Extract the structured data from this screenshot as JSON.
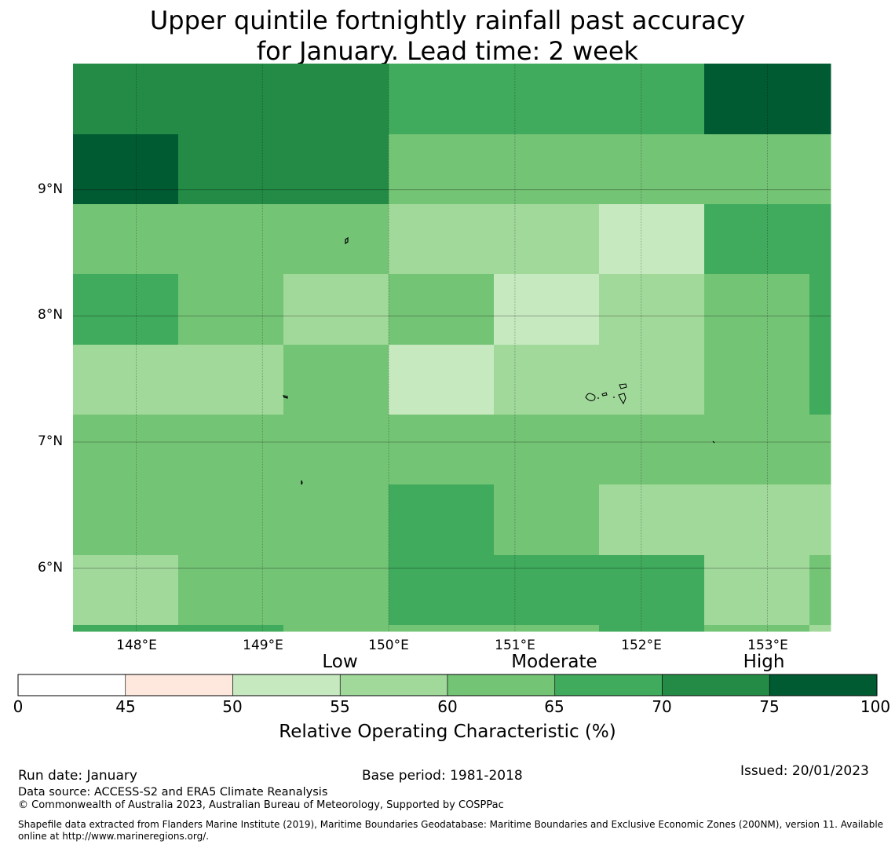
{
  "title_line1": "Upper quintile fortnightly rainfall past accuracy",
  "title_line2": "for January. Lead time: 2 week",
  "map": {
    "lat_range": [
      5.5,
      10.0
    ],
    "lon_range": [
      147.5,
      153.5
    ],
    "cell_size_deg": 0.833,
    "lat_ticks": [
      {
        "value": 9,
        "label": "9°N"
      },
      {
        "value": 8,
        "label": "8°N"
      },
      {
        "value": 7,
        "label": "7°N"
      },
      {
        "value": 6,
        "label": "6°N"
      }
    ],
    "lon_ticks": [
      {
        "value": 148,
        "label": "148°E"
      },
      {
        "value": 149,
        "label": "149°E"
      },
      {
        "value": 150,
        "label": "150°E"
      },
      {
        "value": 151,
        "label": "151°E"
      },
      {
        "value": 152,
        "label": "152°E"
      },
      {
        "value": 153,
        "label": "153°E"
      }
    ],
    "grid_roc_bins": [
      [
        6,
        6,
        6,
        5,
        5,
        5,
        7,
        7
      ],
      [
        7,
        6,
        6,
        4,
        4,
        4,
        4,
        4
      ],
      [
        4,
        4,
        4,
        3,
        3,
        2,
        5,
        5
      ],
      [
        5,
        4,
        3,
        4,
        2,
        3,
        4,
        5
      ],
      [
        3,
        3,
        4,
        2,
        3,
        3,
        4,
        5
      ],
      [
        4,
        4,
        4,
        4,
        4,
        4,
        4,
        4
      ],
      [
        4,
        4,
        4,
        5,
        4,
        3,
        3,
        3
      ],
      [
        3,
        4,
        4,
        5,
        5,
        5,
        3,
        4
      ],
      [
        5,
        5,
        4,
        4,
        4,
        5,
        4,
        3
      ]
    ]
  },
  "colorbar": {
    "categories": [
      {
        "label": "Low",
        "range": [
          50,
          60
        ]
      },
      {
        "label": "Moderate",
        "range": [
          60,
          70
        ]
      },
      {
        "label": "High",
        "range": [
          70,
          100
        ]
      }
    ],
    "ticks": [
      "0",
      "45",
      "50",
      "55",
      "60",
      "65",
      "70",
      "75",
      "100"
    ],
    "bin_colors": [
      "#ffffff",
      "#fee8de",
      "#c7e9c0",
      "#a1d99b",
      "#74c476",
      "#41ab5d",
      "#238b45",
      "#005a32"
    ],
    "title": "Relative Operating Characteristic (%)"
  },
  "footer": {
    "run_date": "Run date: January",
    "base_period": "Base period: 1981-2018",
    "issued": "Issued: 20/01/2023",
    "data_source": "Data source: ACCESS-S2 and ERA5 Climate Reanalysis",
    "copyright": "© Commonwealth of Australia 2023, Australian Bureau of Meteorology, Supported by COSPPac",
    "shapefile": "Shapefile data extracted from Flanders Marine Institute (2019), Maritime Boundaries Geodatabase: Maritime Boundaries and Exclusive Economic Zones (200NM), version 11. Available online at http://www.marineregions.org/."
  },
  "colors": {
    "grid_line": "#000000",
    "coastline": "#000000"
  }
}
